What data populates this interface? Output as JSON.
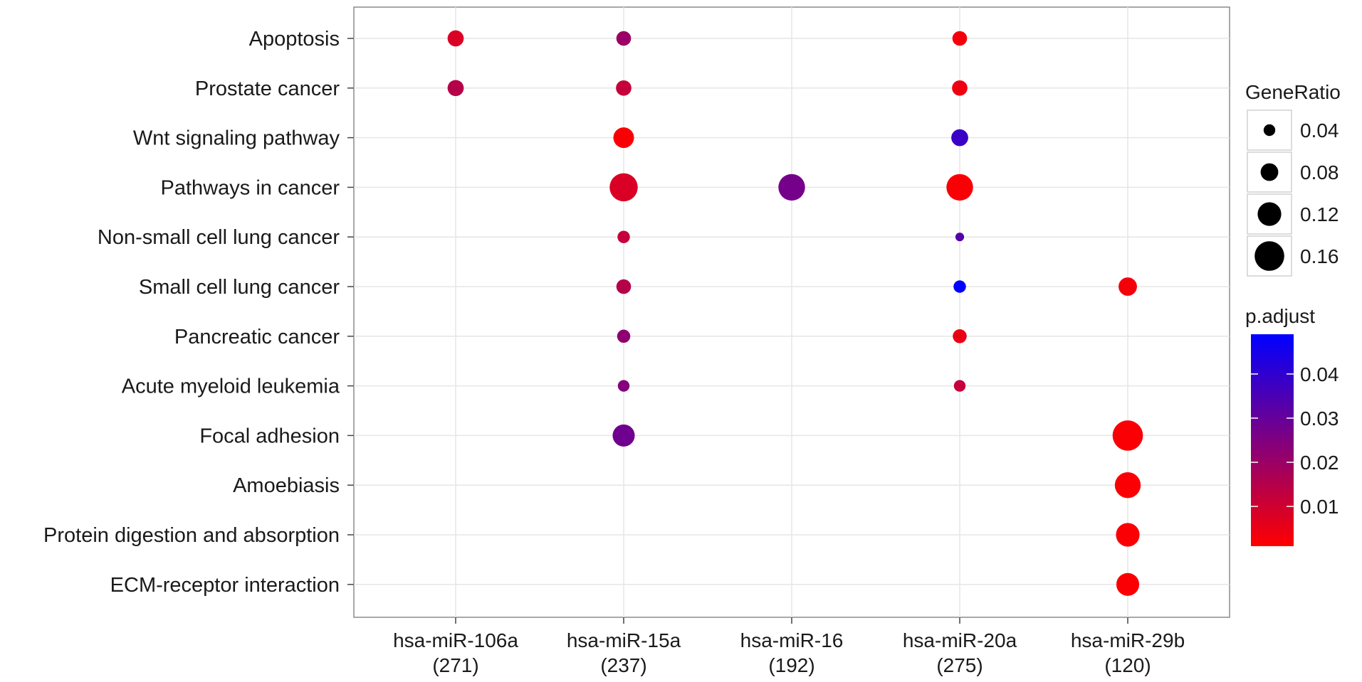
{
  "chart_data": {
    "type": "scatter",
    "title": "",
    "xlabel": "",
    "ylabel": "",
    "grid": true,
    "legend_position": "right",
    "categories_x": [
      {
        "name": "hsa-miR-106a",
        "count": "(271)"
      },
      {
        "name": "hsa-miR-15a",
        "count": "(237)"
      },
      {
        "name": "hsa-miR-16",
        "count": "(192)"
      },
      {
        "name": "hsa-miR-20a",
        "count": "(275)"
      },
      {
        "name": "hsa-miR-29b",
        "count": "(120)"
      }
    ],
    "categories_y": [
      "Apoptosis",
      "Prostate cancer",
      "Wnt signaling pathway",
      "Pathways in cancer",
      "Non-small cell lung cancer",
      "Small cell lung cancer",
      "Pancreatic cancer",
      "Acute myeloid leukemia",
      "Focal adhesion",
      "Amoebiasis",
      "Protein digestion and absorption",
      "ECM-receptor interaction"
    ],
    "points": [
      {
        "x": "hsa-miR-106a",
        "y": "Apoptosis",
        "gene_ratio": 0.07,
        "p_adjust": 0.008
      },
      {
        "x": "hsa-miR-106a",
        "y": "Prostate cancer",
        "gene_ratio": 0.07,
        "p_adjust": 0.015
      },
      {
        "x": "hsa-miR-15a",
        "y": "Apoptosis",
        "gene_ratio": 0.06,
        "p_adjust": 0.02
      },
      {
        "x": "hsa-miR-15a",
        "y": "Prostate cancer",
        "gene_ratio": 0.065,
        "p_adjust": 0.012
      },
      {
        "x": "hsa-miR-15a",
        "y": "Wnt signaling pathway",
        "gene_ratio": 0.1,
        "p_adjust": 0.002
      },
      {
        "x": "hsa-miR-15a",
        "y": "Pathways in cancer",
        "gene_ratio": 0.15,
        "p_adjust": 0.008
      },
      {
        "x": "hsa-miR-15a",
        "y": "Non-small cell lung cancer",
        "gene_ratio": 0.045,
        "p_adjust": 0.012
      },
      {
        "x": "hsa-miR-15a",
        "y": "Small cell lung cancer",
        "gene_ratio": 0.06,
        "p_adjust": 0.015
      },
      {
        "x": "hsa-miR-15a",
        "y": "Pancreatic cancer",
        "gene_ratio": 0.05,
        "p_adjust": 0.022
      },
      {
        "x": "hsa-miR-15a",
        "y": "Acute myeloid leukemia",
        "gene_ratio": 0.04,
        "p_adjust": 0.024
      },
      {
        "x": "hsa-miR-15a",
        "y": "Focal adhesion",
        "gene_ratio": 0.11,
        "p_adjust": 0.028
      },
      {
        "x": "hsa-miR-16",
        "y": "Pathways in cancer",
        "gene_ratio": 0.14,
        "p_adjust": 0.027
      },
      {
        "x": "hsa-miR-20a",
        "y": "Apoptosis",
        "gene_ratio": 0.06,
        "p_adjust": 0.003
      },
      {
        "x": "hsa-miR-20a",
        "y": "Prostate cancer",
        "gene_ratio": 0.065,
        "p_adjust": 0.004
      },
      {
        "x": "hsa-miR-20a",
        "y": "Wnt signaling pathway",
        "gene_ratio": 0.075,
        "p_adjust": 0.038
      },
      {
        "x": "hsa-miR-20a",
        "y": "Pathways in cancer",
        "gene_ratio": 0.14,
        "p_adjust": 0.002
      },
      {
        "x": "hsa-miR-20a",
        "y": "Non-small cell lung cancer",
        "gene_ratio": 0.02,
        "p_adjust": 0.033
      },
      {
        "x": "hsa-miR-20a",
        "y": "Small cell lung cancer",
        "gene_ratio": 0.045,
        "p_adjust": 0.049
      },
      {
        "x": "hsa-miR-20a",
        "y": "Pancreatic cancer",
        "gene_ratio": 0.055,
        "p_adjust": 0.005
      },
      {
        "x": "hsa-miR-20a",
        "y": "Acute myeloid leukemia",
        "gene_ratio": 0.04,
        "p_adjust": 0.012
      },
      {
        "x": "hsa-miR-29b",
        "y": "Small cell lung cancer",
        "gene_ratio": 0.085,
        "p_adjust": 0.003
      },
      {
        "x": "hsa-miR-29b",
        "y": "Focal adhesion",
        "gene_ratio": 0.165,
        "p_adjust": 0.002
      },
      {
        "x": "hsa-miR-29b",
        "y": "Amoebiasis",
        "gene_ratio": 0.135,
        "p_adjust": 0.002
      },
      {
        "x": "hsa-miR-29b",
        "y": "Protein digestion and absorption",
        "gene_ratio": 0.12,
        "p_adjust": 0.002
      },
      {
        "x": "hsa-miR-29b",
        "y": "ECM-receptor interaction",
        "gene_ratio": 0.115,
        "p_adjust": 0.002
      }
    ],
    "size_legend": {
      "title": "GeneRatio",
      "values": [
        0.04,
        0.08,
        0.12,
        0.16
      ],
      "labels": [
        "0.04",
        "0.08",
        "0.12",
        "0.16"
      ]
    },
    "color_legend": {
      "title": "p.adjust",
      "range": [
        0.001,
        0.049
      ],
      "ticks": [
        0.01,
        0.02,
        0.03,
        0.04
      ],
      "tick_labels": [
        "0.01",
        "0.02",
        "0.03",
        "0.04"
      ],
      "low_color": "#ff0000",
      "high_color": "#0000ff"
    }
  }
}
